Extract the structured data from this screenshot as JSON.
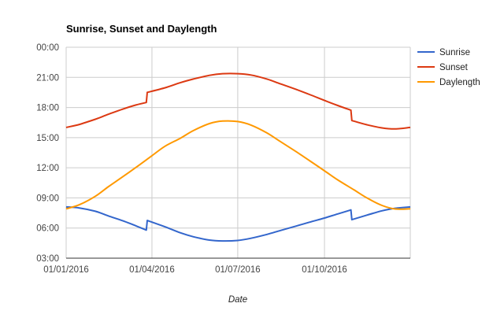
{
  "chart_data": {
    "type": "line",
    "title": "Sunrise, Sunset and Daylength",
    "xlabel": "Date",
    "ylabel": "",
    "x_range": [
      "01/01/2016",
      "31/12/2016"
    ],
    "x_ticks": [
      "01/01/2016",
      "01/04/2016",
      "01/07/2016",
      "01/10/2016"
    ],
    "y_ticks": [
      "03:00",
      "06:00",
      "09:00",
      "12:00",
      "15:00",
      "18:00",
      "21:00",
      "00:00"
    ],
    "ylim": [
      "03:00",
      "00:00"
    ],
    "grid": true,
    "legend_position": "right",
    "series": [
      {
        "name": "Sunrise",
        "color": "#3366cc",
        "points": [
          [
            "01/01/2016",
            "08:06"
          ],
          [
            "15/01/2016",
            "08:00"
          ],
          [
            "01/02/2016",
            "07:40"
          ],
          [
            "15/02/2016",
            "07:12"
          ],
          [
            "01/03/2016",
            "06:44"
          ],
          [
            "15/03/2016",
            "06:13"
          ],
          [
            "26/03/2016",
            "05:48"
          ],
          [
            "27/03/2016",
            "06:45"
          ],
          [
            "15/04/2016",
            "06:07"
          ],
          [
            "01/05/2016",
            "05:32"
          ],
          [
            "15/05/2016",
            "05:08"
          ],
          [
            "01/06/2016",
            "04:48"
          ],
          [
            "15/06/2016",
            "04:43"
          ],
          [
            "01/07/2016",
            "04:46"
          ],
          [
            "15/07/2016",
            "04:59"
          ],
          [
            "01/08/2016",
            "05:22"
          ],
          [
            "15/08/2016",
            "05:45"
          ],
          [
            "01/09/2016",
            "06:12"
          ],
          [
            "15/09/2016",
            "06:35"
          ],
          [
            "01/10/2016",
            "07:00"
          ],
          [
            "15/10/2016",
            "07:24"
          ],
          [
            "29/10/2016",
            "07:48"
          ],
          [
            "30/10/2016",
            "06:50"
          ],
          [
            "15/11/2016",
            "07:17"
          ],
          [
            "01/12/2016",
            "07:43"
          ],
          [
            "15/12/2016",
            "07:58"
          ],
          [
            "31/12/2016",
            "08:06"
          ]
        ]
      },
      {
        "name": "Sunset",
        "color": "#dc3912",
        "points": [
          [
            "01/01/2016",
            "16:01"
          ],
          [
            "15/01/2016",
            "16:19"
          ],
          [
            "01/02/2016",
            "16:50"
          ],
          [
            "15/02/2016",
            "17:20"
          ],
          [
            "01/03/2016",
            "17:50"
          ],
          [
            "15/03/2016",
            "18:15"
          ],
          [
            "26/03/2016",
            "18:30"
          ],
          [
            "27/03/2016",
            "19:30"
          ],
          [
            "15/04/2016",
            "19:58"
          ],
          [
            "01/05/2016",
            "20:28"
          ],
          [
            "15/05/2016",
            "20:50"
          ],
          [
            "01/06/2016",
            "21:12"
          ],
          [
            "15/06/2016",
            "21:22"
          ],
          [
            "01/07/2016",
            "21:22"
          ],
          [
            "15/07/2016",
            "21:14"
          ],
          [
            "01/08/2016",
            "20:50"
          ],
          [
            "15/08/2016",
            "20:22"
          ],
          [
            "01/09/2016",
            "19:48"
          ],
          [
            "15/09/2016",
            "19:18"
          ],
          [
            "01/10/2016",
            "18:42"
          ],
          [
            "15/10/2016",
            "18:12"
          ],
          [
            "29/10/2016",
            "17:44"
          ],
          [
            "30/10/2016",
            "16:42"
          ],
          [
            "15/11/2016",
            "16:17"
          ],
          [
            "01/12/2016",
            "15:58"
          ],
          [
            "15/12/2016",
            "15:52"
          ],
          [
            "31/12/2016",
            "16:01"
          ]
        ]
      },
      {
        "name": "Daylength",
        "color": "#ff9900",
        "points": [
          [
            "01/01/2016",
            "07:55"
          ],
          [
            "15/01/2016",
            "08:19"
          ],
          [
            "01/02/2016",
            "09:10"
          ],
          [
            "15/02/2016",
            "10:08"
          ],
          [
            "01/03/2016",
            "11:06"
          ],
          [
            "15/03/2016",
            "12:02"
          ],
          [
            "01/04/2016",
            "13:12"
          ],
          [
            "15/04/2016",
            "14:09"
          ],
          [
            "01/05/2016",
            "14:56"
          ],
          [
            "15/05/2016",
            "15:42"
          ],
          [
            "01/06/2016",
            "16:24"
          ],
          [
            "15/06/2016",
            "16:39"
          ],
          [
            "01/07/2016",
            "16:36"
          ],
          [
            "15/07/2016",
            "16:15"
          ],
          [
            "01/08/2016",
            "15:28"
          ],
          [
            "15/08/2016",
            "14:37"
          ],
          [
            "01/09/2016",
            "13:36"
          ],
          [
            "15/09/2016",
            "12:43"
          ],
          [
            "01/10/2016",
            "11:42"
          ],
          [
            "15/10/2016",
            "10:48"
          ],
          [
            "01/11/2016",
            "09:49"
          ],
          [
            "15/11/2016",
            "09:00"
          ],
          [
            "01/12/2016",
            "08:15"
          ],
          [
            "15/12/2016",
            "07:54"
          ],
          [
            "31/12/2016",
            "07:55"
          ]
        ]
      }
    ]
  }
}
